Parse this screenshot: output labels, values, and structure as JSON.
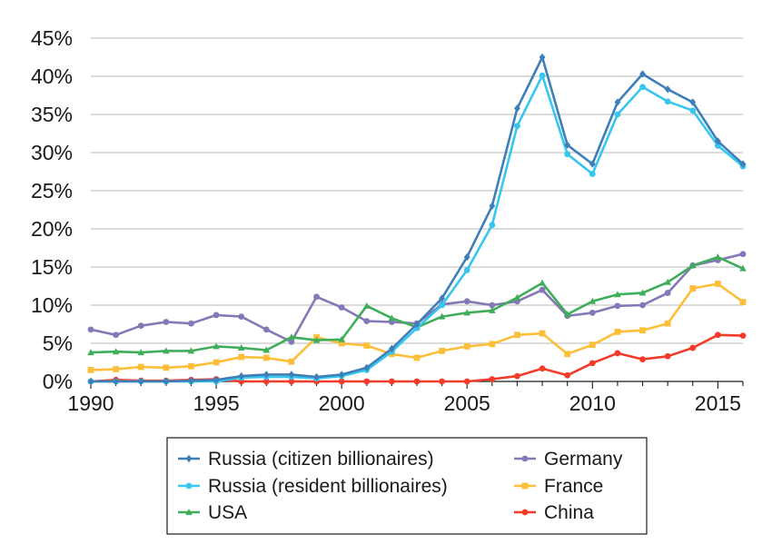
{
  "chart_data": {
    "type": "line",
    "title": "",
    "xlabel": "",
    "ylabel": "",
    "xlim": [
      1990,
      2016
    ],
    "ylim": [
      0,
      45
    ],
    "yticks": [
      0,
      5,
      10,
      15,
      20,
      25,
      30,
      35,
      40,
      45
    ],
    "ytick_labels": [
      "0%",
      "5%",
      "10%",
      "15%",
      "20%",
      "25%",
      "30%",
      "35%",
      "40%",
      "45%"
    ],
    "xticks": [
      1990,
      1995,
      2000,
      2005,
      2010,
      2015
    ],
    "xtick_labels": [
      "1990",
      "1995",
      "2000",
      "2005",
      "2010",
      "2015"
    ],
    "grid": "horizontal",
    "legend_position": "bottom",
    "x": [
      1990,
      1991,
      1992,
      1993,
      1994,
      1995,
      1996,
      1997,
      1998,
      1999,
      2000,
      2001,
      2002,
      2003,
      2004,
      2005,
      2006,
      2007,
      2008,
      2009,
      2010,
      2011,
      2012,
      2013,
      2014,
      2015,
      2016
    ],
    "series": [
      {
        "name": "Russia (citizen billionaires)",
        "color": "#3f7fb8",
        "marker": "diamond",
        "values": [
          0.0,
          0.0,
          0.0,
          0.0,
          0.1,
          0.2,
          0.7,
          0.9,
          0.9,
          0.6,
          0.9,
          1.8,
          4.3,
          7.5,
          10.9,
          16.3,
          23.0,
          35.8,
          42.5,
          31.0,
          28.5,
          36.6,
          40.3,
          38.3,
          36.6,
          31.5,
          28.5
        ]
      },
      {
        "name": "Russia (resident billionaires)",
        "color": "#37c6ee",
        "marker": "circle",
        "values": [
          0.0,
          0.0,
          0.0,
          0.0,
          0.0,
          0.0,
          0.5,
          0.6,
          0.6,
          0.4,
          0.7,
          1.5,
          3.9,
          7.0,
          10.0,
          14.6,
          20.5,
          33.5,
          40.1,
          29.8,
          27.2,
          35.0,
          38.6,
          36.7,
          35.5,
          30.9,
          28.2
        ]
      },
      {
        "name": "USA",
        "color": "#3fae5a",
        "marker": "triangle",
        "values": [
          3.8,
          3.9,
          3.8,
          4.0,
          4.0,
          4.6,
          4.4,
          4.1,
          5.8,
          5.4,
          5.5,
          9.9,
          8.3,
          7.1,
          8.5,
          9.0,
          9.3,
          11.0,
          12.9,
          8.8,
          10.5,
          11.4,
          11.6,
          13.0,
          15.2,
          16.3,
          14.8
        ]
      },
      {
        "name": "Germany",
        "color": "#8478b6",
        "marker": "circle",
        "values": [
          6.8,
          6.1,
          7.3,
          7.8,
          7.6,
          8.7,
          8.5,
          6.8,
          5.2,
          11.1,
          9.7,
          7.9,
          7.8,
          7.6,
          10.1,
          10.5,
          10.0,
          10.5,
          12.0,
          8.6,
          9.0,
          9.9,
          10.0,
          11.6,
          15.2,
          15.9,
          16.7
        ]
      },
      {
        "name": "France",
        "color": "#fdbe3a",
        "marker": "square",
        "values": [
          1.5,
          1.6,
          1.9,
          1.8,
          2.0,
          2.5,
          3.2,
          3.1,
          2.6,
          5.8,
          5.0,
          4.7,
          3.6,
          3.1,
          4.0,
          4.6,
          4.9,
          6.1,
          6.3,
          3.6,
          4.8,
          6.5,
          6.7,
          7.6,
          12.2,
          12.8,
          10.4
        ]
      },
      {
        "name": "China",
        "color": "#f23b29",
        "marker": "circle",
        "values": [
          0.0,
          0.2,
          0.1,
          0.1,
          0.2,
          0.3,
          0.0,
          0.0,
          0.0,
          0.0,
          0.0,
          0.0,
          0.0,
          0.0,
          0.0,
          0.0,
          0.3,
          0.7,
          1.7,
          0.8,
          2.4,
          3.7,
          2.9,
          3.3,
          4.4,
          6.1,
          6.0
        ]
      }
    ]
  }
}
